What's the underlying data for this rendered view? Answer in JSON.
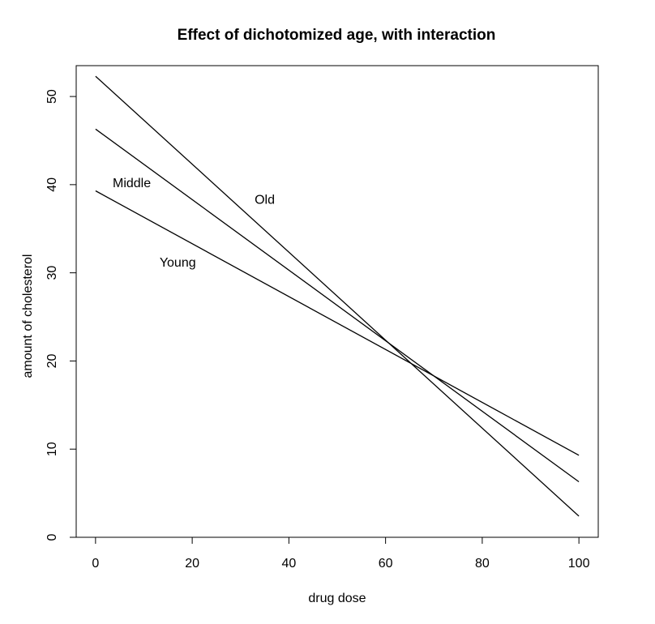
{
  "chart_data": {
    "type": "line",
    "title": "Effect of dichotomized age, with interaction",
    "xlabel": "drug dose",
    "ylabel": "amount of cholesterol",
    "xlim": [
      -4,
      104
    ],
    "ylim": [
      0,
      53.5
    ],
    "xticks": [
      0,
      20,
      40,
      60,
      80,
      100
    ],
    "yticks": [
      0,
      10,
      20,
      30,
      40,
      50
    ],
    "grid": false,
    "legend": "none",
    "series": [
      {
        "name": "Old",
        "x": [
          0,
          100
        ],
        "y": [
          52.3,
          2.4
        ],
        "label_pos": [
          35,
          38.2
        ]
      },
      {
        "name": "Middle",
        "x": [
          0,
          100
        ],
        "y": [
          46.3,
          6.3
        ],
        "label_pos": [
          7.5,
          40.1
        ]
      },
      {
        "name": "Young",
        "x": [
          0,
          100
        ],
        "y": [
          39.3,
          9.3
        ],
        "label_pos": [
          17,
          31.1
        ]
      }
    ],
    "colors": {
      "line": "#000000",
      "text": "#000000",
      "background": "#ffffff"
    }
  }
}
